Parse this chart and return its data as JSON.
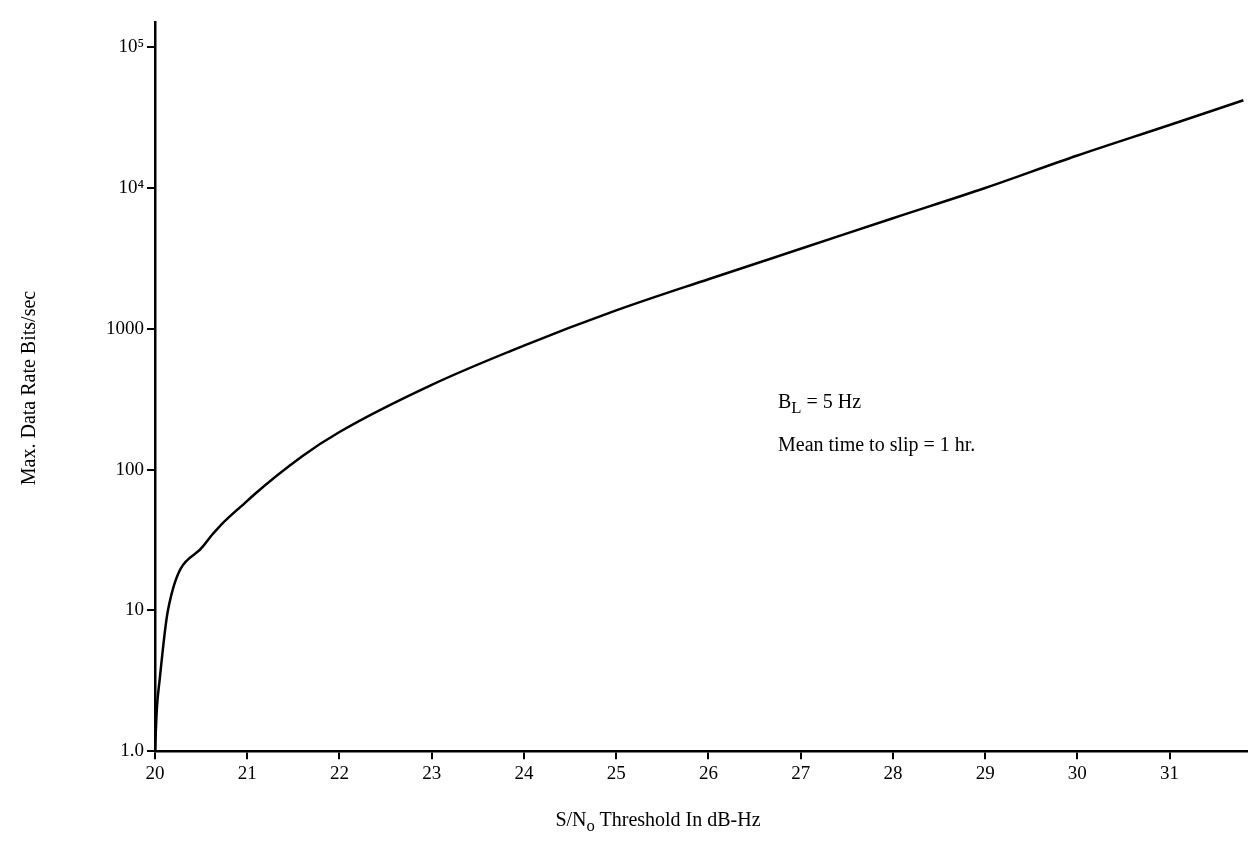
{
  "chart_data": {
    "type": "line",
    "xlabel": "S/N$_{o}$ Threshold In dB-Hz",
    "ylabel": "Max. Data Rate Bits/sec",
    "annotations": [
      "B$_{L}$ = 5 Hz",
      "Mean time to slip = 1 hr."
    ],
    "x": [
      20,
      20.02,
      20.05,
      20.14,
      20.53,
      21,
      21.6,
      22,
      23,
      24,
      25,
      26,
      27,
      28,
      29,
      30,
      31,
      31.8
    ],
    "series": [
      {
        "color": "#000000",
        "values": [
          1,
          2,
          3.2,
          10,
          29,
          60,
          125,
          185,
          400,
          760,
          1350,
          2250,
          3700,
          6100,
          10000,
          17000,
          28000,
          42000
        ]
      }
    ],
    "xlim": [
      20,
      31.85
    ],
    "xticks": [
      20,
      21,
      22,
      23,
      24,
      25,
      26,
      27,
      28,
      29,
      30,
      31
    ],
    "ylim": [
      1,
      150000
    ],
    "yticks": [
      {
        "value": 1,
        "label": "1.0"
      },
      10,
      100,
      1000,
      {
        "value": 10000,
        "label": "10⁴"
      },
      {
        "value": 100000,
        "label": "10⁵"
      }
    ],
    "log": "y",
    "grid": false,
    "legend": false,
    "marker": "none",
    "line_style": "solid"
  }
}
